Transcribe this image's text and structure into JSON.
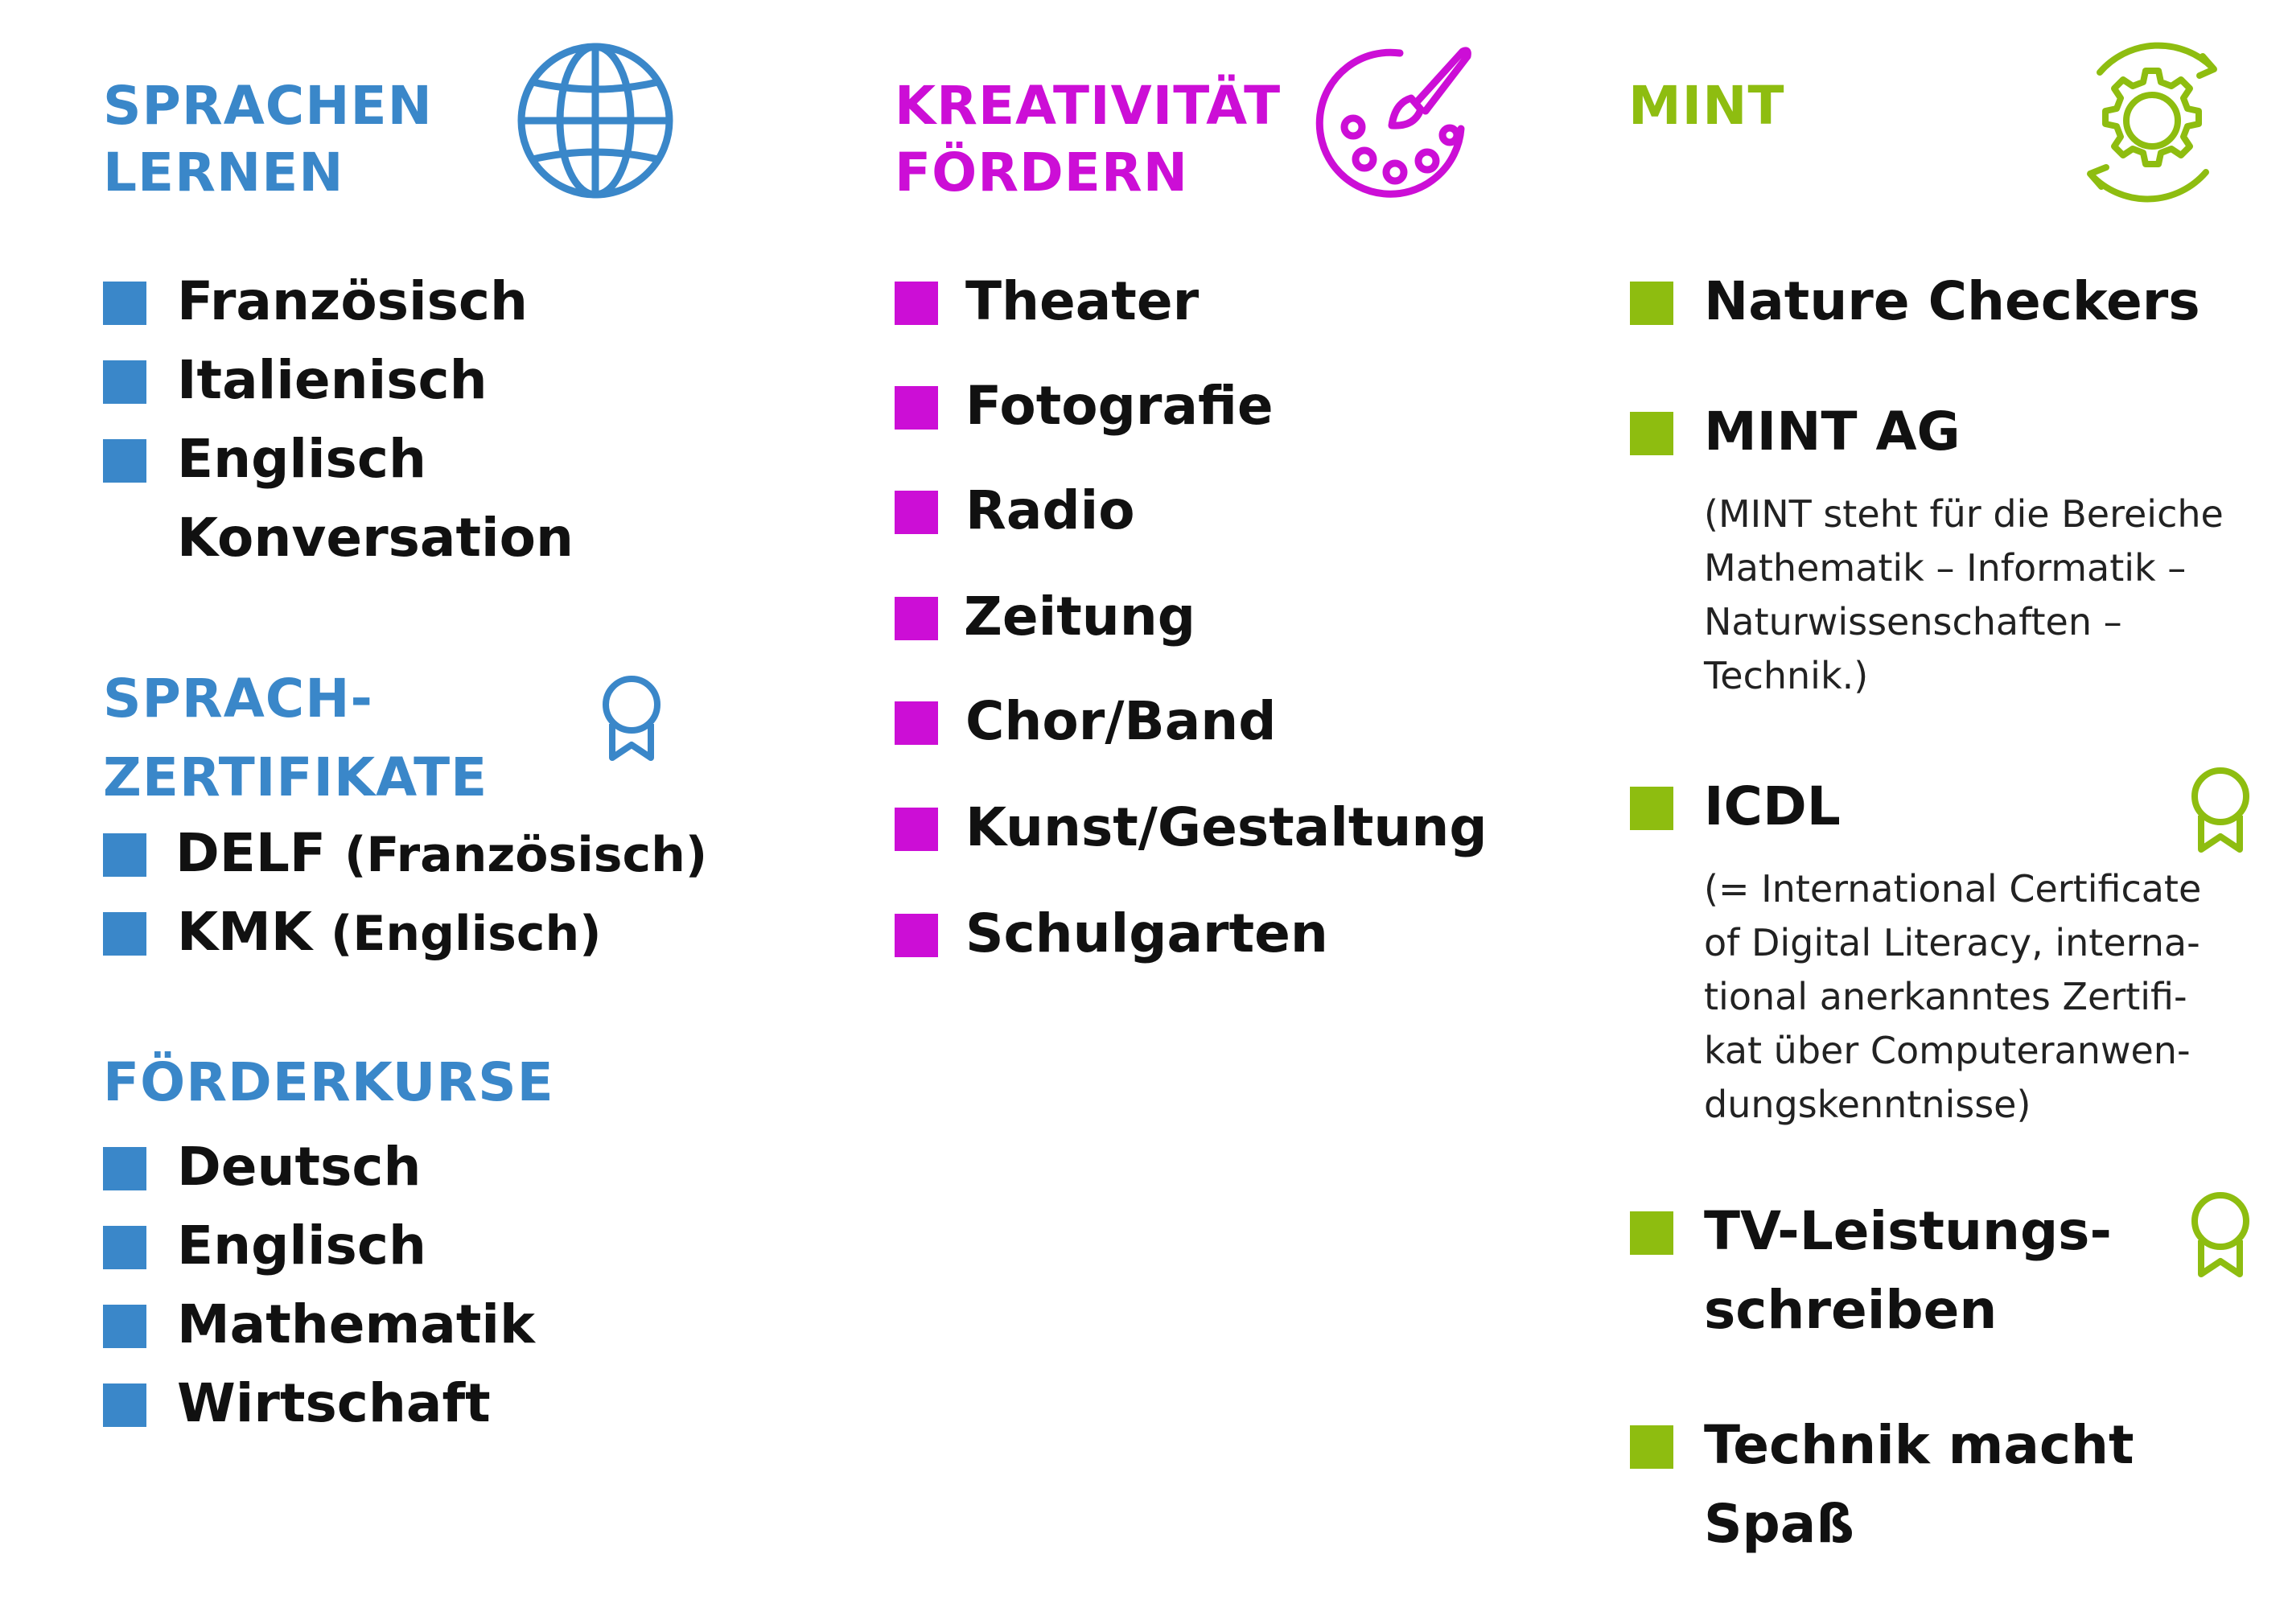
{
  "colors": {
    "languages": "#3a87c9",
    "creativity": "#cc0ed6",
    "mint": "#8ebd10"
  },
  "col1": {
    "heading": [
      "SPRACHEN",
      "LERNEN"
    ],
    "heading_icon": "globe-icon",
    "items": [
      "Französisch",
      "Italienisch",
      "Englisch",
      "Konversation"
    ],
    "cert": {
      "heading": [
        "SPRACH-",
        "ZERTIFIKATE"
      ],
      "heading_icon": "award-ribbon-icon",
      "items": [
        {
          "main": "DELF",
          "paren": "(Französisch)"
        },
        {
          "main": "KMK",
          "paren": "(Englisch)"
        }
      ]
    },
    "support": {
      "heading": "FÖRDERKURSE",
      "items": [
        "Deutsch",
        "Englisch",
        "Mathematik",
        "Wirtschaft"
      ]
    }
  },
  "col2": {
    "heading": [
      "KREATIVITÄT",
      "FÖRDERN"
    ],
    "heading_icon": "paint-palette-icon",
    "items": [
      "Theater",
      "Fotografie",
      "Radio",
      "Zeitung",
      "Chor/Band",
      "Kunst/Gestaltung",
      "Schulgarten"
    ]
  },
  "col3": {
    "heading": "MINT",
    "heading_icon": "gear-cycle-icon",
    "items": {
      "nature": "Nature Checkers",
      "mint_ag": "MINT AG",
      "mint_ag_note": [
        "(MINT steht für die Bereiche",
        "Mathematik – Informatik –",
        "Naturwissenschaften –",
        "Technik.)"
      ],
      "icdl": "ICDL",
      "icdl_note": [
        "(= International Certificate",
        "of Digital Literacy, interna-",
        "tional anerkanntes Zertifi-",
        "kat über Computeranwen-",
        "dungskenntnisse)"
      ],
      "tv": [
        "TV-Leistungs-",
        "schreiben"
      ],
      "technik": [
        "Technik macht",
        "Spaß"
      ]
    }
  }
}
